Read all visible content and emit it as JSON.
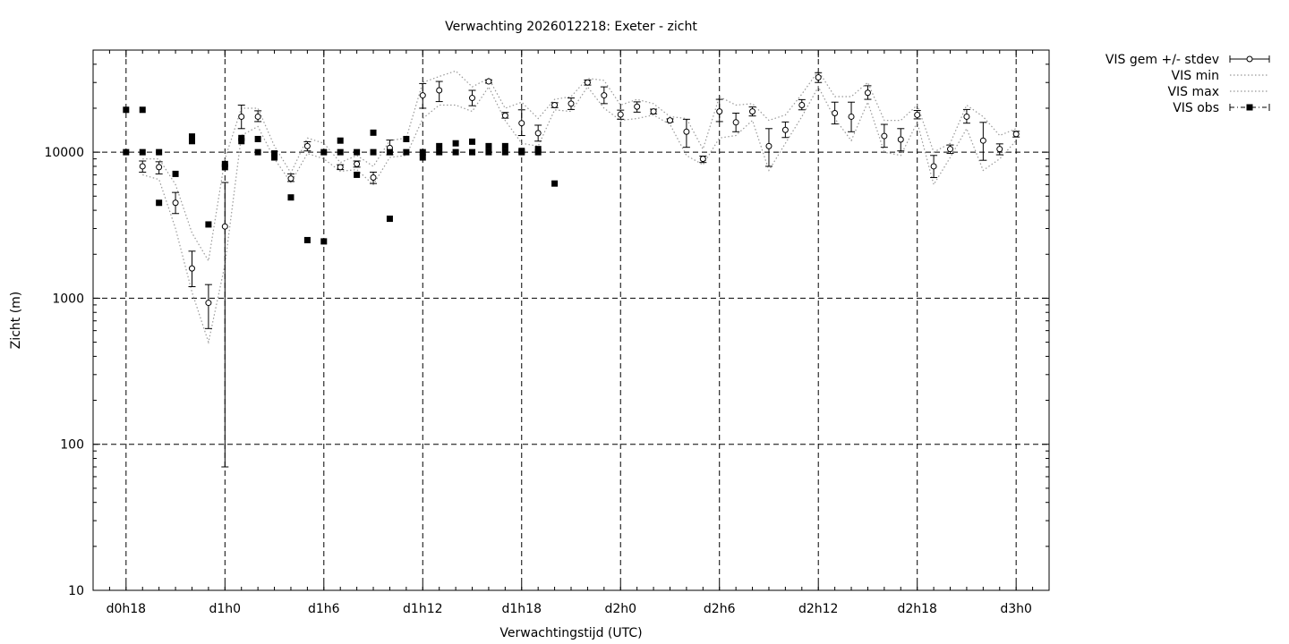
{
  "chart_data": {
    "type": "scatter",
    "title": "Verwachting 2026012218: Exeter - zicht",
    "xlabel": "Verwachtingstijd (UTC)",
    "ylabel": "Zicht (m)",
    "y_scale": "log",
    "ylim": [
      10,
      50000
    ],
    "xlim_hours": [
      16,
      74
    ],
    "x_ticks": [
      {
        "hour": 18,
        "label": "d0h18"
      },
      {
        "hour": 24,
        "label": "d1h0"
      },
      {
        "hour": 30,
        "label": "d1h6"
      },
      {
        "hour": 36,
        "label": "d1h12"
      },
      {
        "hour": 42,
        "label": "d1h18"
      },
      {
        "hour": 48,
        "label": "d2h0"
      },
      {
        "hour": 54,
        "label": "d2h6"
      },
      {
        "hour": 60,
        "label": "d2h12"
      },
      {
        "hour": 66,
        "label": "d2h18"
      },
      {
        "hour": 72,
        "label": "d3h0"
      }
    ],
    "y_ticks": [
      {
        "value": 10,
        "label": "10"
      },
      {
        "value": 100,
        "label": "100"
      },
      {
        "value": 1000,
        "label": "1000"
      },
      {
        "value": 10000,
        "label": "10000"
      }
    ],
    "grid": true,
    "legend_position": "outside-right",
    "series": [
      {
        "name": "VIS gem +/- stdev",
        "style": "errorbars",
        "x": [
          18,
          19,
          20,
          21,
          22,
          23,
          24,
          25,
          26,
          27,
          28,
          29,
          30,
          31,
          32,
          33,
          34,
          35,
          36,
          37,
          38,
          39,
          40,
          41,
          42,
          43,
          44,
          45,
          46,
          47,
          48,
          49,
          50,
          51,
          52,
          53,
          54,
          55,
          56,
          57,
          58,
          59,
          60,
          61,
          62,
          63,
          64,
          65,
          66,
          67,
          68,
          69,
          70,
          71,
          72
        ],
        "y": [
          null,
          8000,
          7900,
          4500,
          1600,
          930,
          3100,
          17500,
          17500,
          null,
          6600,
          11000,
          null,
          7900,
          8300,
          6700,
          10700,
          null,
          24500,
          26500,
          null,
          23500,
          30500,
          17800,
          15800,
          13500,
          21000,
          21500,
          30000,
          24500,
          18100,
          20500,
          19000,
          16500,
          13800,
          9000,
          19000,
          16000,
          19000,
          11000,
          14200,
          21000,
          32500,
          18500,
          17500,
          25500,
          12900,
          12200,
          18000,
          8000,
          10500,
          17500,
          12000,
          10500,
          13300
        ],
        "ylow": [
          null,
          7300,
          7100,
          3800,
          1200,
          620,
          70,
          14500,
          16200,
          null,
          6300,
          10200,
          null,
          7600,
          7900,
          6100,
          9600,
          null,
          20000,
          22200,
          null,
          20800,
          29700,
          17100,
          13000,
          11900,
          20200,
          19600,
          28800,
          21500,
          16800,
          18800,
          18300,
          16100,
          10800,
          8500,
          16200,
          13800,
          17700,
          8000,
          12600,
          19500,
          30000,
          15600,
          13800,
          23000,
          10800,
          10200,
          16900,
          6700,
          9800,
          15800,
          8800,
          9600,
          12700
        ],
        "yhigh": [
          null,
          8700,
          8600,
          5300,
          2100,
          1240,
          6200,
          21000,
          19200,
          null,
          7100,
          11800,
          null,
          8200,
          8700,
          7300,
          12100,
          null,
          29500,
          30500,
          null,
          26500,
          31300,
          18700,
          19500,
          15300,
          21800,
          23500,
          31200,
          28000,
          19400,
          22100,
          19700,
          16900,
          16800,
          9400,
          23000,
          18500,
          20400,
          14500,
          16100,
          22900,
          35000,
          22000,
          22000,
          28500,
          15500,
          14500,
          19300,
          9500,
          11200,
          19600,
          16000,
          11400,
          13900
        ]
      },
      {
        "name": "VIS min",
        "style": "dotted",
        "x": [
          18,
          19,
          20,
          21,
          22,
          23,
          24,
          25,
          26,
          27,
          28,
          29,
          30,
          31,
          32,
          33,
          34,
          35,
          36,
          37,
          38,
          39,
          40,
          41,
          42,
          43,
          44,
          45,
          46,
          47,
          48,
          49,
          50,
          51,
          52,
          53,
          54,
          55,
          56,
          57,
          58,
          59,
          60,
          61,
          62,
          63,
          64,
          65,
          66,
          67,
          68,
          69,
          70,
          71,
          72
        ],
        "y": [
          null,
          7000,
          6500,
          3000,
          1100,
          500,
          1700,
          13000,
          15000,
          9000,
          6200,
          9800,
          9000,
          7400,
          7600,
          6000,
          9200,
          9500,
          17000,
          21000,
          21000,
          19000,
          28000,
          16500,
          11500,
          11000,
          19500,
          19000,
          28000,
          20000,
          16500,
          17000,
          18000,
          15500,
          9500,
          8200,
          12500,
          13000,
          16500,
          7500,
          11500,
          17500,
          28000,
          17000,
          12000,
          22000,
          10000,
          9500,
          16000,
          6000,
          9200,
          14500,
          7500,
          9000,
          12000
        ]
      },
      {
        "name": "VIS max",
        "style": "dotted",
        "x": [
          18,
          19,
          20,
          21,
          22,
          23,
          24,
          25,
          26,
          27,
          28,
          29,
          30,
          31,
          32,
          33,
          34,
          35,
          36,
          37,
          38,
          39,
          40,
          41,
          42,
          43,
          44,
          45,
          46,
          47,
          48,
          49,
          50,
          51,
          52,
          53,
          54,
          55,
          56,
          57,
          58,
          59,
          60,
          61,
          62,
          63,
          64,
          65,
          66,
          67,
          68,
          69,
          70,
          71,
          72
        ],
        "y": [
          null,
          9000,
          9000,
          6000,
          2800,
          1800,
          9000,
          20000,
          20000,
          11000,
          7200,
          12500,
          11500,
          8500,
          9500,
          8000,
          12000,
          12500,
          30000,
          33000,
          36000,
          28000,
          32000,
          20000,
          22000,
          17000,
          23000,
          24000,
          32000,
          31000,
          21000,
          23000,
          21500,
          17500,
          17000,
          10500,
          24000,
          21000,
          21500,
          16500,
          18000,
          25000,
          36000,
          24000,
          24000,
          30000,
          16500,
          16500,
          21000,
          10000,
          11500,
          21000,
          17500,
          13000,
          14500
        ]
      },
      {
        "name": "VIS obs",
        "style": "markers",
        "x": [
          18,
          18,
          19,
          19,
          20,
          20,
          21,
          22,
          22,
          23,
          24,
          24,
          25,
          25,
          26,
          26,
          27,
          27,
          28,
          29,
          30,
          30,
          31,
          31,
          32,
          32,
          33,
          33,
          34,
          34,
          35,
          35,
          36,
          36,
          37,
          37,
          38,
          38,
          39,
          39,
          40,
          40,
          41,
          41,
          42,
          42,
          43,
          43,
          44
        ],
        "y": [
          19500,
          10000,
          19500,
          10000,
          10000,
          4500,
          7100,
          12800,
          11900,
          3200,
          8300,
          7900,
          12500,
          11900,
          12300,
          10000,
          9800,
          9200,
          4900,
          2500,
          2450,
          10000,
          12000,
          10000,
          10000,
          7000,
          13600,
          10000,
          3500,
          10000,
          12300,
          10000,
          10000,
          9200,
          11000,
          10000,
          11500,
          10000,
          11800,
          10000,
          11000,
          10000,
          11000,
          10000,
          10200,
          10000,
          10500,
          10000,
          6100
        ]
      }
    ]
  }
}
